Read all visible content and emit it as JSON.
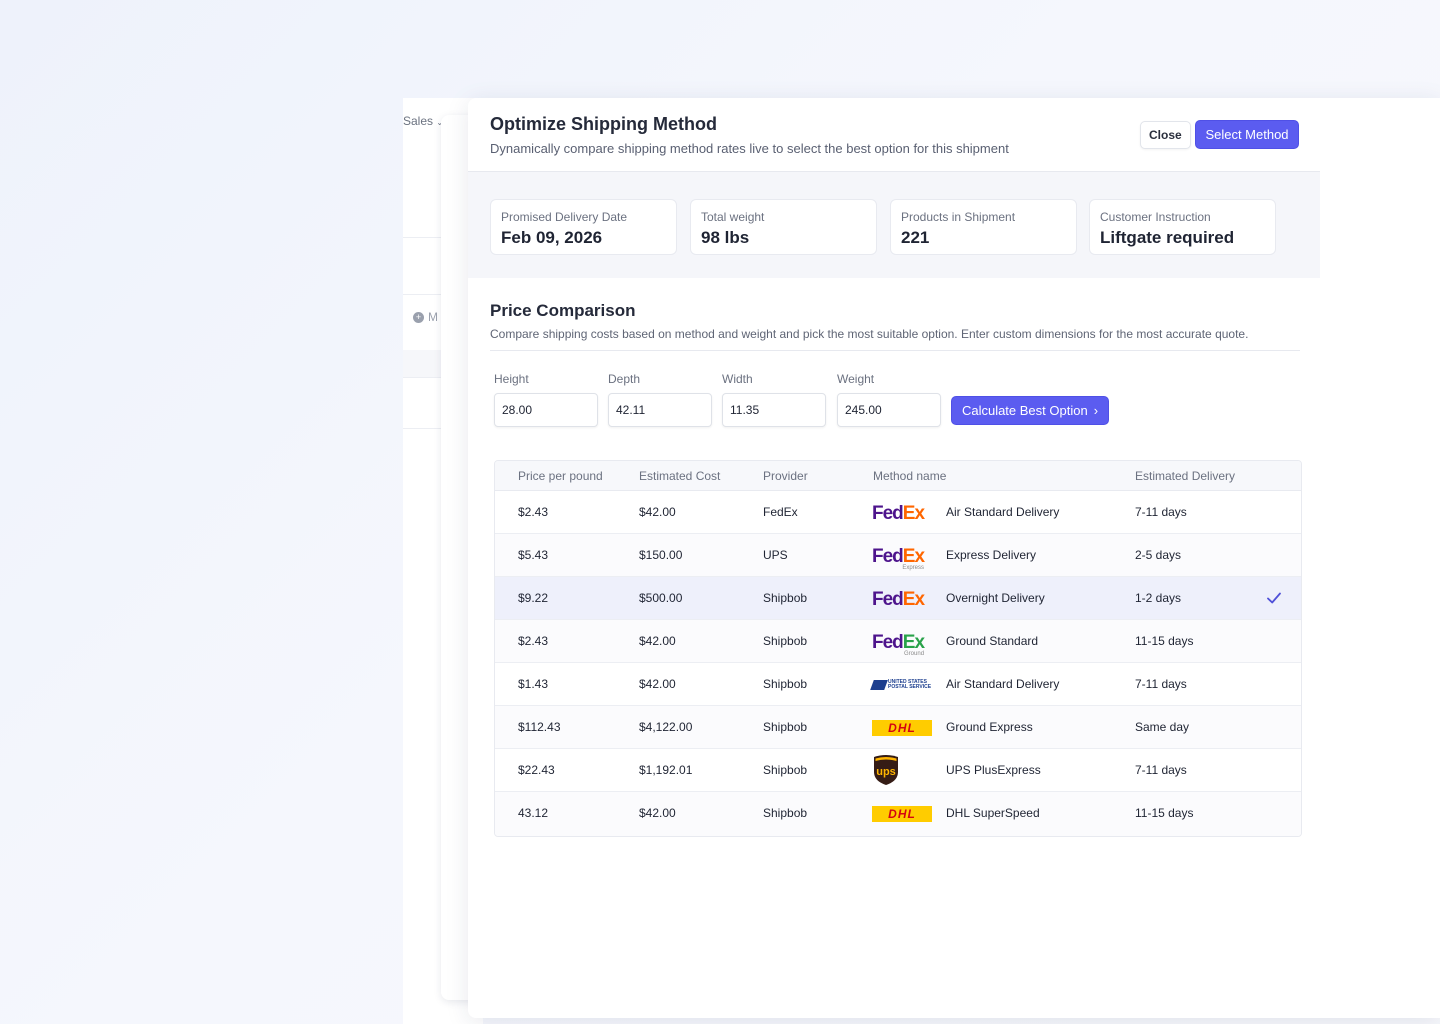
{
  "background": {
    "sales_label": "Sales",
    "m_label": "M"
  },
  "modal": {
    "title": "Optimize Shipping Method",
    "subtitle": "Dynamically compare shipping method rates live to select the best option for this shipment",
    "close_label": "Close",
    "select_label": "Select Method"
  },
  "summary": [
    {
      "label": "Promised Delivery Date",
      "value": "Feb 09, 2026"
    },
    {
      "label": "Total weight",
      "value": "98 lbs"
    },
    {
      "label": "Products in Shipment",
      "value": "221"
    },
    {
      "label": "Customer Instruction",
      "value": "Liftgate required"
    }
  ],
  "price_comparison": {
    "title": "Price Comparison",
    "subtitle": "Compare shipping costs based on method and weight and pick the most suitable option. Enter custom dimensions for the most accurate quote.",
    "fields": [
      {
        "label": "Height",
        "value": "28.00"
      },
      {
        "label": "Depth",
        "value": "42.11"
      },
      {
        "label": "Width",
        "value": "11.35"
      },
      {
        "label": "Weight",
        "value": "245.00"
      }
    ],
    "calc_label": "Calculate Best Option"
  },
  "table": {
    "headers": [
      "Price per pound",
      "Estimated Cost",
      "Provider",
      "Method name",
      "Estimated Delivery"
    ],
    "rows": [
      {
        "ppp": "$2.43",
        "cost": "$42.00",
        "provider": "FedEx",
        "logo": "fedex",
        "logo_fe": "Fed",
        "logo_ex": "Ex",
        "logo_tag": "",
        "method": "Air Standard Delivery",
        "delivery": "7-11 days",
        "selected": false
      },
      {
        "ppp": "$5.43",
        "cost": "$150.00",
        "provider": "UPS",
        "logo": "fedex-express",
        "logo_fe": "Fed",
        "logo_ex": "Ex",
        "logo_tag": "Express",
        "method": "Express Delivery",
        "delivery": "2-5 days",
        "selected": false
      },
      {
        "ppp": "$9.22",
        "cost": "$500.00",
        "provider": "Shipbob",
        "logo": "fedex",
        "logo_fe": "Fed",
        "logo_ex": "Ex",
        "logo_tag": "",
        "method": "Overnight Delivery",
        "delivery": "1-2 days",
        "selected": true
      },
      {
        "ppp": "$2.43",
        "cost": "$42.00",
        "provider": "Shipbob",
        "logo": "fedex-ground",
        "logo_fe": "Fed",
        "logo_ex": "Ex",
        "logo_tag": "Ground",
        "method": "Ground Standard",
        "delivery": "11-15 days",
        "selected": false
      },
      {
        "ppp": "$1.43",
        "cost": "$42.00",
        "provider": "Shipbob",
        "logo": "usps",
        "logo_text_1": "UNITED STATES",
        "logo_text_2": "POSTAL SERVICE",
        "method": "Air Standard Delivery",
        "delivery": "7-11 days",
        "selected": false
      },
      {
        "ppp": "$112.43",
        "cost": "$4,122.00",
        "provider": "Shipbob",
        "logo": "dhl",
        "logo_text": "DHL",
        "method": "Ground Express",
        "delivery": "Same day",
        "selected": false
      },
      {
        "ppp": "$22.43",
        "cost": "$1,192.01",
        "provider": "Shipbob",
        "logo": "ups",
        "logo_text": "ups",
        "method": "UPS PlusExpress",
        "delivery": "7-11 days",
        "selected": false
      },
      {
        "ppp": "43.12",
        "cost": "$42.00",
        "provider": "Shipbob",
        "logo": "dhl",
        "logo_text": "DHL",
        "method": "DHL SuperSpeed",
        "delivery": "11-15 days",
        "selected": false
      }
    ]
  },
  "colors": {
    "primary": "#5b5cf0",
    "selected_row": "#eef0fb",
    "fedex_purple": "#4d148c",
    "fedex_orange": "#ff6600",
    "fedex_green": "#29a24a",
    "dhl_yellow": "#ffcc00",
    "dhl_red": "#d40511",
    "ups_brown": "#351c15",
    "ups_gold": "#ffb500",
    "usps_blue": "#1d3f8f"
  }
}
